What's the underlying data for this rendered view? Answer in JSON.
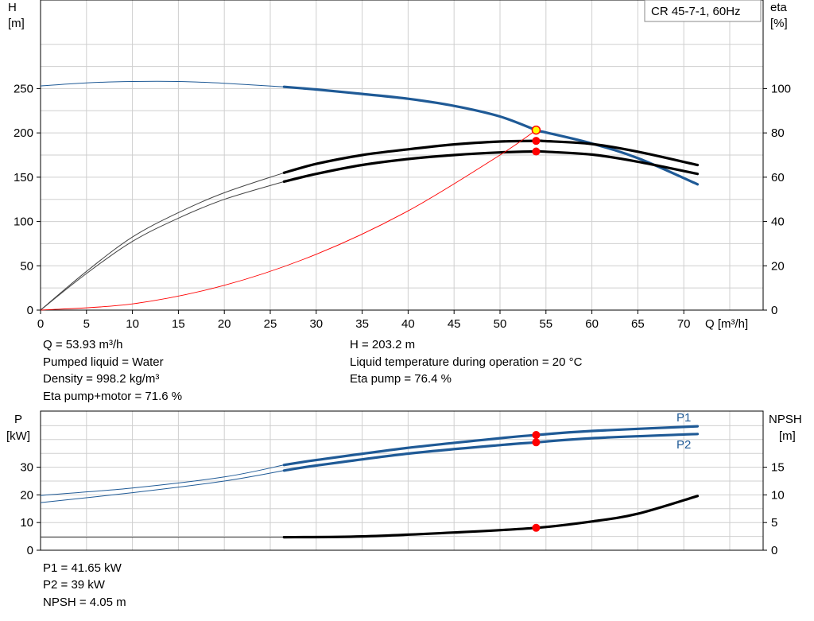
{
  "chart_data": [
    {
      "type": "line",
      "title": "CR 45-7-1, 60Hz",
      "xlabel": "Q [m³/h]",
      "ylabel_left": [
        "H",
        "[m]"
      ],
      "ylabel_right": [
        "eta",
        "[%]"
      ],
      "xlim": [
        0,
        78
      ],
      "ylim_left": [
        0,
        300
      ],
      "ylim_right": [
        0,
        120
      ],
      "xticks": [
        "0",
        "5",
        "10",
        "15",
        "20",
        "25",
        "30",
        "35",
        "40",
        "45",
        "50",
        "55",
        "60",
        "65",
        "70"
      ],
      "yticks_left": [
        "0",
        "50",
        "100",
        "150",
        "200",
        "250"
      ],
      "yticks_right": [
        "0",
        "20",
        "40",
        "60",
        "80",
        "100"
      ],
      "grid": true,
      "operating_point": {
        "Q": 53.93,
        "H": 203.2,
        "eta_pump": 76.4,
        "eta_pump_motor": 71.6
      },
      "series": [
        {
          "key": "H",
          "axis": "left",
          "color": "#1f5a96",
          "thin": [
            [
              0,
              253
            ],
            [
              5,
              256.5
            ],
            [
              10,
              258
            ],
            [
              15,
              258
            ],
            [
              20,
              256
            ],
            [
              26.5,
              252
            ]
          ],
          "thick": [
            [
              26.5,
              252
            ],
            [
              30,
              249
            ],
            [
              35,
              244
            ],
            [
              40,
              238.5
            ],
            [
              45,
              230.5
            ],
            [
              50,
              218.5
            ],
            [
              53.93,
              203.2
            ],
            [
              55,
              200.5
            ],
            [
              60,
              188
            ],
            [
              65,
              171.5
            ],
            [
              71.5,
              142
            ]
          ]
        },
        {
          "key": "eta_pump",
          "axis": "right",
          "color": "#000000",
          "thin": [
            [
              0,
              0
            ],
            [
              5,
              17.5
            ],
            [
              10,
              33
            ],
            [
              15,
              44
            ],
            [
              20,
              53
            ],
            [
              26.5,
              62
            ]
          ],
          "thick": [
            [
              26.5,
              62
            ],
            [
              30,
              66
            ],
            [
              35,
              70
            ],
            [
              40,
              72.6
            ],
            [
              45,
              74.8
            ],
            [
              50,
              76.1
            ],
            [
              53.93,
              76.4
            ],
            [
              55,
              76.3
            ],
            [
              60,
              75
            ],
            [
              65,
              71.5
            ],
            [
              71.5,
              65.5
            ]
          ]
        },
        {
          "key": "eta_pump_motor",
          "axis": "right",
          "color": "#000000",
          "thin": [
            [
              0,
              0
            ],
            [
              5,
              16.5
            ],
            [
              10,
              31
            ],
            [
              15,
              41.5
            ],
            [
              20,
              50
            ],
            [
              26.5,
              58
            ]
          ],
          "thick": [
            [
              26.5,
              58
            ],
            [
              30,
              61.5
            ],
            [
              35,
              65.5
            ],
            [
              40,
              68.2
            ],
            [
              45,
              70
            ],
            [
              50,
              71.2
            ],
            [
              53.93,
              71.6
            ],
            [
              55,
              71.5
            ],
            [
              60,
              70.2
            ],
            [
              65,
              67
            ],
            [
              71.5,
              61.5
            ]
          ]
        },
        {
          "key": "system_curve",
          "axis": "left",
          "color": "#ff0000",
          "thin": [
            [
              0,
              0
            ],
            [
              10,
              7
            ],
            [
              20,
              28
            ],
            [
              30,
              63
            ],
            [
              40,
              112
            ],
            [
              50,
              175
            ],
            [
              53.93,
              203.2
            ]
          ],
          "thick": []
        }
      ]
    },
    {
      "type": "line",
      "xlim": [
        0,
        78
      ],
      "ylabel_left": [
        "P",
        "[kW]"
      ],
      "ylabel_right": [
        "NPSH",
        "[m]"
      ],
      "ylim_left": [
        0,
        50
      ],
      "ylim_right": [
        0,
        25
      ],
      "yticks_left": [
        "0",
        "10",
        "20",
        "30"
      ],
      "yticks_right": [
        "0",
        "5",
        "10",
        "15"
      ],
      "grid": true,
      "operating_point": {
        "Q": 53.93,
        "P1": 41.65,
        "P2": 39,
        "NPSH": 4.05
      },
      "series": [
        {
          "name": "P1",
          "axis": "left",
          "color": "#1f5a96",
          "thin": [
            [
              0,
              19.8
            ],
            [
              10,
              22.5
            ],
            [
              20,
              26.5
            ],
            [
              26.5,
              30.8
            ]
          ],
          "thick": [
            [
              26.5,
              30.8
            ],
            [
              30,
              32.6
            ],
            [
              40,
              37
            ],
            [
              50,
              40.5
            ],
            [
              53.93,
              41.65
            ],
            [
              60,
              43.1
            ],
            [
              71.5,
              44.8
            ]
          ]
        },
        {
          "name": "P2",
          "axis": "left",
          "color": "#1f5a96",
          "thin": [
            [
              0,
              17.2
            ],
            [
              10,
              20.8
            ],
            [
              20,
              25
            ],
            [
              26.5,
              28.8
            ]
          ],
          "thick": [
            [
              26.5,
              28.8
            ],
            [
              30,
              30.6
            ],
            [
              40,
              34.9
            ],
            [
              50,
              38
            ],
            [
              53.93,
              39
            ],
            [
              60,
              40.5
            ],
            [
              71.5,
              42
            ]
          ]
        },
        {
          "key": "NPSH",
          "axis": "right",
          "color": "#000000",
          "thin": [
            [
              0,
              2.35
            ],
            [
              26.5,
              2.35
            ]
          ],
          "thick": [
            [
              26.5,
              2.35
            ],
            [
              35,
              2.5
            ],
            [
              45,
              3.2
            ],
            [
              53.93,
              4.05
            ],
            [
              60,
              5.2
            ],
            [
              65,
              6.6
            ],
            [
              71.5,
              9.8
            ]
          ]
        }
      ]
    }
  ],
  "info_left": [
    "Q = 53.93 m³/h",
    "Pumped liquid = Water",
    "Density = 998.2 kg/m³",
    "Eta pump+motor = 71.6 %"
  ],
  "info_right": [
    "H = 203.2 m",
    "Liquid temperature during operation = 20 °C",
    "Eta pump = 76.4 %"
  ],
  "info_bottom": [
    "P1 = 41.65 kW",
    "P2 = 39 kW",
    "NPSH = 4.05 m"
  ],
  "colors": {
    "grid": "#cfcfcf",
    "blue": "#1f5a96",
    "marker": "#ff0000",
    "op_marker_fill": "#ffff00"
  }
}
